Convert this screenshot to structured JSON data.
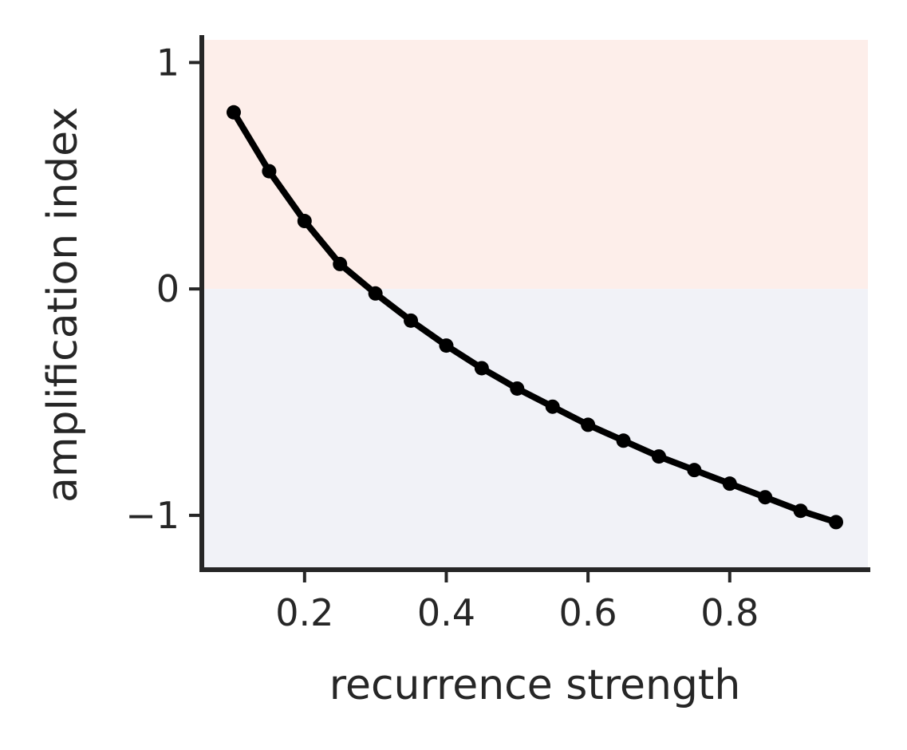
{
  "chart_data": {
    "type": "line",
    "title": "",
    "xlabel": "recurrence strength",
    "ylabel": "amplification index",
    "xlim": [
      0.055,
      0.995
    ],
    "ylim": [
      -1.24,
      1.1
    ],
    "xticks": [
      0.2,
      0.4,
      0.6,
      0.8
    ],
    "xtick_labels": [
      "0.2",
      "0.4",
      "0.6",
      "0.8"
    ],
    "yticks": [
      1,
      0,
      -1
    ],
    "ytick_labels": [
      "1",
      "0",
      "−1"
    ],
    "grid": false,
    "legend": "none",
    "regions": [
      {
        "y_from": 0,
        "y_to": 1.1,
        "color": "#fdeeea"
      },
      {
        "y_from": -1.24,
        "y_to": 0,
        "color": "#f1f2f7"
      }
    ],
    "series": [
      {
        "color": "#000000",
        "marker": "circle",
        "x": [
          0.1,
          0.15,
          0.2,
          0.25,
          0.3,
          0.35,
          0.4,
          0.45,
          0.5,
          0.55,
          0.6,
          0.65,
          0.7,
          0.75,
          0.8,
          0.85,
          0.9,
          0.95
        ],
        "y": [
          0.78,
          0.52,
          0.3,
          0.11,
          -0.02,
          -0.14,
          -0.25,
          -0.35,
          -0.44,
          -0.52,
          -0.6,
          -0.67,
          -0.74,
          -0.8,
          -0.86,
          -0.92,
          -0.98,
          -1.03
        ]
      }
    ],
    "colors": {
      "axis": "#262626",
      "text": "#262626",
      "line": "#000000"
    }
  }
}
